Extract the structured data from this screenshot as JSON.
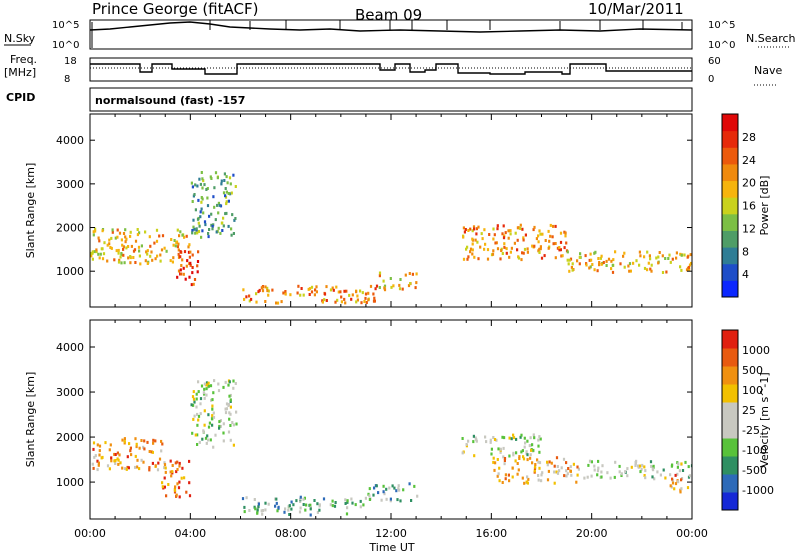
{
  "header": {
    "station": "Prince George (fitACF)",
    "beam": "Beam 09",
    "date": "10/Mar/2011"
  },
  "sidepanel": {
    "nsky": "N.Sky",
    "nsearch": "N.Search",
    "freq_line1": "Freq.",
    "freq_line2": "[MHz]",
    "nave": "Nave",
    "cpid": "CPID",
    "nsky_ticks": [
      "10^5",
      "10^0"
    ],
    "nsearch_ticks": [
      "10^5",
      "10^0"
    ],
    "freq_ticks": [
      "18",
      "8"
    ],
    "nave_ticks": [
      "60",
      "0"
    ]
  },
  "cpid_text": "normalsound (fast) -157",
  "time_ticks": [
    "00:00",
    "04:00",
    "08:00",
    "12:00",
    "16:00",
    "20:00",
    "00:00"
  ],
  "xlabel": "Time UT",
  "chart_data": [
    {
      "type": "heatmap",
      "name": "power",
      "ylabel": "Slant Range [km]",
      "xlim_hours": [
        0,
        24
      ],
      "ylim_km": [
        180,
        4600
      ],
      "yticks": [
        "1000",
        "2000",
        "3000",
        "4000"
      ],
      "yticks_values": [
        1000,
        2000,
        3000,
        4000
      ],
      "colorbar_label": "Power [dB]",
      "colorbar_ticks": [
        "4",
        "8",
        "12",
        "16",
        "20",
        "24",
        "28"
      ],
      "colorbar_colors": [
        "#0c28ff",
        "#1e4ec8",
        "#2f7d95",
        "#4f9d67",
        "#7cbf44",
        "#c9d21c",
        "#f6b40d",
        "#f08a0d",
        "#ec5a0c",
        "#e62a0a",
        "#e00808"
      ],
      "regions": [
        {
          "t0": 0.0,
          "t1": 4.0,
          "r0": 1200,
          "r1": 2000,
          "level": 6
        },
        {
          "t0": 3.3,
          "t1": 4.3,
          "r0": 700,
          "r1": 1500,
          "level": 9
        },
        {
          "t0": 4.0,
          "t1": 5.8,
          "r0": 1800,
          "r1": 3300,
          "level": 3
        },
        {
          "t0": 6.0,
          "t1": 11.5,
          "r0": 300,
          "r1": 700,
          "level": 7
        },
        {
          "t0": 11.5,
          "t1": 13.0,
          "r0": 600,
          "r1": 1000,
          "level": 6
        },
        {
          "t0": 14.8,
          "t1": 19.0,
          "r0": 1300,
          "r1": 2100,
          "level": 7
        },
        {
          "t0": 19.0,
          "t1": 24.0,
          "r0": 1000,
          "r1": 1500,
          "level": 6
        }
      ]
    },
    {
      "type": "heatmap",
      "name": "velocity",
      "ylabel": "Slant Range [km]",
      "xlim_hours": [
        0,
        24
      ],
      "ylim_km": [
        180,
        4600
      ],
      "yticks": [
        "1000",
        "2000",
        "3000",
        "4000"
      ],
      "yticks_values": [
        1000,
        2000,
        3000,
        4000
      ],
      "colorbar_label": "Velocity [m s^-1]",
      "colorbar_ticks": [
        "1000",
        "500",
        "100",
        "25",
        "-25",
        "-100",
        "-500",
        "-1000"
      ],
      "colorbar_colors": [
        "#1528d6",
        "#2d6ab8",
        "#2f8f62",
        "#58c23a",
        "#c8c8c0",
        "#c8c8c0",
        "#f2c000",
        "#f09010",
        "#e85a10",
        "#e02010"
      ],
      "regions": [
        {
          "t0": 0.0,
          "t1": 3.0,
          "r0": 1300,
          "r1": 2000,
          "level": 7
        },
        {
          "t0": 2.8,
          "t1": 4.0,
          "r0": 700,
          "r1": 1500,
          "level": 8
        },
        {
          "t0": 4.0,
          "t1": 5.8,
          "r0": 1800,
          "r1": 3300,
          "level": 4
        },
        {
          "t0": 6.0,
          "t1": 11.0,
          "r0": 300,
          "r1": 700,
          "level": 3
        },
        {
          "t0": 11.0,
          "t1": 13.0,
          "r0": 600,
          "r1": 1000,
          "level": 3
        },
        {
          "t0": 14.8,
          "t1": 18.0,
          "r0": 1600,
          "r1": 2100,
          "level": 4
        },
        {
          "t0": 16.0,
          "t1": 19.5,
          "r0": 1000,
          "r1": 1600,
          "level": 6
        },
        {
          "t0": 19.5,
          "t1": 24.0,
          "r0": 1100,
          "r1": 1500,
          "level": 4
        },
        {
          "t0": 23.0,
          "t1": 24.0,
          "r0": 800,
          "r1": 1200,
          "level": 7
        }
      ]
    }
  ]
}
